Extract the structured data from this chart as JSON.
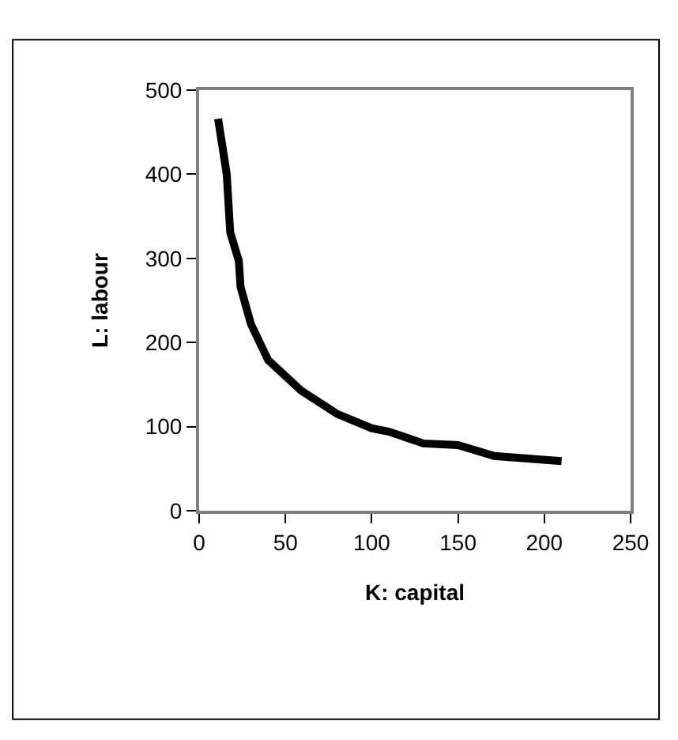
{
  "chart_data": {
    "type": "line",
    "xlabel": "K: capital",
    "ylabel": "L: labour",
    "series": [
      {
        "color": "#000000",
        "x": [
          11,
          16,
          18,
          23,
          24,
          30,
          40,
          59,
          80,
          100,
          110,
          130,
          150,
          171,
          210
        ],
        "values": [
          466,
          400,
          331,
          297,
          266,
          222,
          179,
          143,
          115,
          98,
          94,
          80,
          78,
          65,
          59
        ]
      }
    ],
    "xlim": [
      0,
      250
    ],
    "xticks": [
      0,
      50,
      100,
      150,
      200,
      250
    ],
    "ylim": [
      0,
      500
    ],
    "yticks": [
      0,
      100,
      200,
      300,
      400,
      500
    ],
    "marker": "none",
    "line_style": "solid"
  }
}
